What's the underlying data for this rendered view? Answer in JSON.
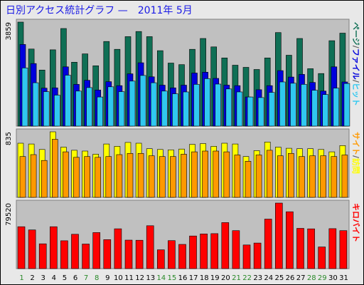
{
  "title": "日別アクセス統計グラフ —　2011年 5月",
  "colors": {
    "page": "#0f6f55",
    "file": "#0000dd",
    "hit": "#30c8f0",
    "site": "#ffff00",
    "visit": "#ff9900",
    "kb": "#ff0000",
    "plot_bg": "#c0c0c0",
    "weekend": "#2a8a2a",
    "weekday": "#000000",
    "title": "#1a1ae6"
  },
  "chart_data": [
    {
      "type": "bar",
      "panel": "top",
      "max_label": "3859",
      "legend": [
        "ページ",
        "ファイル",
        "ヒット"
      ],
      "legend_colors": [
        "#0f6f55",
        "#0000dd",
        "#30c8f0"
      ],
      "legend_separators": [
        "/",
        "/"
      ],
      "categories": [
        "1",
        "2",
        "3",
        "4",
        "5",
        "6",
        "7",
        "8",
        "9",
        "10",
        "11",
        "12",
        "13",
        "14",
        "15",
        "16",
        "17",
        "18",
        "19",
        "20",
        "21",
        "22",
        "23",
        "24",
        "25",
        "26",
        "27",
        "28",
        "29",
        "30",
        "31"
      ],
      "series": [
        {
          "name": "ページ",
          "values": [
            3859,
            2860,
            2080,
            2830,
            3620,
            2370,
            2680,
            2240,
            3140,
            2850,
            3320,
            3510,
            3320,
            2800,
            2340,
            2280,
            2850,
            3250,
            2940,
            2530,
            2260,
            2180,
            2100,
            2530,
            3470,
            2630,
            3250,
            2130,
            1950,
            3170,
            3450
          ]
        },
        {
          "name": "ファイル",
          "values": [
            3030,
            2320,
            1410,
            1420,
            2200,
            1550,
            1700,
            1340,
            1650,
            1500,
            1940,
            2350,
            1830,
            1520,
            1420,
            1520,
            1970,
            2000,
            1770,
            1520,
            1500,
            1080,
            1350,
            1500,
            2060,
            1820,
            1920,
            1620,
            1300,
            2200,
            1640
          ]
        },
        {
          "name": "ヒット",
          "values": [
            2160,
            1610,
            1280,
            1150,
            1890,
            1300,
            1430,
            1080,
            1460,
            1280,
            1670,
            1880,
            1610,
            1300,
            1200,
            1270,
            1550,
            1760,
            1560,
            1380,
            1270,
            1080,
            1060,
            1250,
            1640,
            1590,
            1550,
            1330,
            1170,
            1410,
            1580
          ]
        }
      ]
    },
    {
      "type": "bar",
      "panel": "middle",
      "max_label": "835",
      "legend": [
        "サイト",
        "訪問"
      ],
      "legend_colors": [
        "#ff9900",
        "#ffff00"
      ],
      "legend_separators": [
        "/"
      ],
      "series": [
        {
          "name": "訪問",
          "values": [
            690,
            680,
            610,
            835,
            640,
            600,
            590,
            550,
            680,
            650,
            700,
            690,
            620,
            610,
            605,
            615,
            675,
            685,
            650,
            690,
            680,
            520,
            595,
            705,
            640,
            625,
            620,
            620,
            610,
            580,
            660
          ]
        },
        {
          "name": "サイト",
          "values": [
            520,
            545,
            470,
            740,
            580,
            510,
            520,
            510,
            520,
            545,
            560,
            560,
            530,
            520,
            520,
            550,
            580,
            590,
            590,
            580,
            540,
            460,
            540,
            600,
            530,
            560,
            520,
            530,
            530,
            520,
            540
          ]
        }
      ]
    },
    {
      "type": "bar",
      "panel": "bottom",
      "max_label": "79520",
      "legend": [
        "キロバイト"
      ],
      "legend_colors": [
        "#ff0000"
      ],
      "legend_separators": [],
      "series": [
        {
          "name": "キロバイト",
          "values": [
            50800,
            46900,
            30100,
            50800,
            33800,
            41700,
            29800,
            43700,
            35200,
            48300,
            34600,
            34400,
            52000,
            22800,
            34000,
            29400,
            39600,
            42100,
            42400,
            55800,
            46100,
            28700,
            31000,
            60100,
            79520,
            69000,
            48800,
            48200,
            26300,
            48500,
            46100
          ]
        }
      ]
    }
  ],
  "weekend_days": [
    "1",
    "7",
    "8",
    "14",
    "15",
    "21",
    "22",
    "28",
    "29"
  ]
}
